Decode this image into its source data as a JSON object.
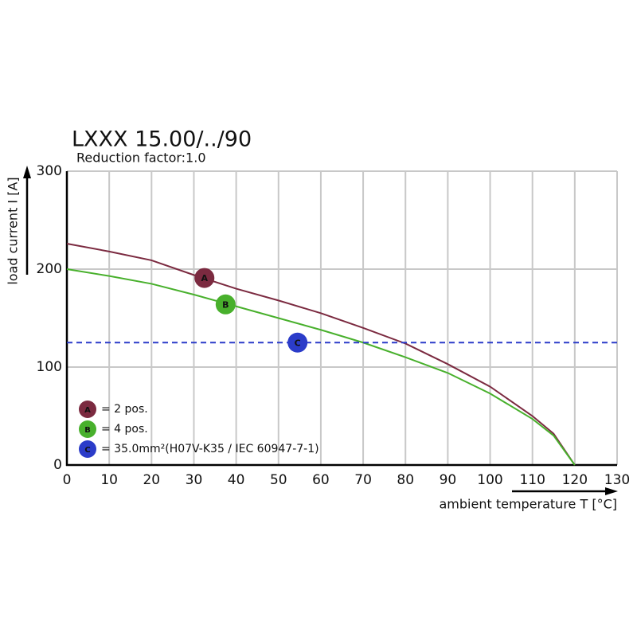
{
  "chart_data": {
    "type": "line",
    "title": "LXXX 15.00/../90",
    "subtitle": "Reduction factor:1.0",
    "y_label": "load current I [A]",
    "x_label": "ambient temperature T [°C]",
    "xlim": [
      0,
      130
    ],
    "xticks": [
      0,
      10,
      20,
      30,
      40,
      50,
      60,
      70,
      80,
      90,
      100,
      110,
      120,
      130
    ],
    "ylim": [
      0,
      300
    ],
    "yticks": [
      0,
      100,
      200,
      300
    ],
    "grid": true,
    "series": [
      {
        "name": "= 2 pos.",
        "label": "A",
        "color": "#7b2a40",
        "dashed": false,
        "x": [
          0,
          10,
          20,
          30,
          40,
          50,
          60,
          70,
          80,
          90,
          100,
          110,
          115,
          120
        ],
        "values": [
          226,
          218,
          209,
          194,
          180,
          168,
          155,
          140,
          124,
          103,
          80,
          50,
          32,
          0
        ],
        "marker_x": 32.5,
        "marker_y": 191
      },
      {
        "name": "= 4 pos.",
        "label": "B",
        "color": "#48b02c",
        "dashed": false,
        "x": [
          0,
          10,
          20,
          30,
          40,
          50,
          60,
          70,
          80,
          90,
          100,
          110,
          115,
          120
        ],
        "values": [
          200,
          193,
          185,
          174,
          162,
          150,
          138,
          125,
          110,
          94,
          73,
          47,
          30,
          0
        ],
        "marker_x": 37.5,
        "marker_y": 164
      },
      {
        "name": "= 35.0mm²(H07V-K35 / IEC 60947-7-1)",
        "label": "C",
        "color": "#2b3cc9",
        "dashed": true,
        "x": [
          0,
          130
        ],
        "values": [
          125,
          125
        ],
        "marker_x": 54.5,
        "marker_y": 125
      }
    ]
  }
}
